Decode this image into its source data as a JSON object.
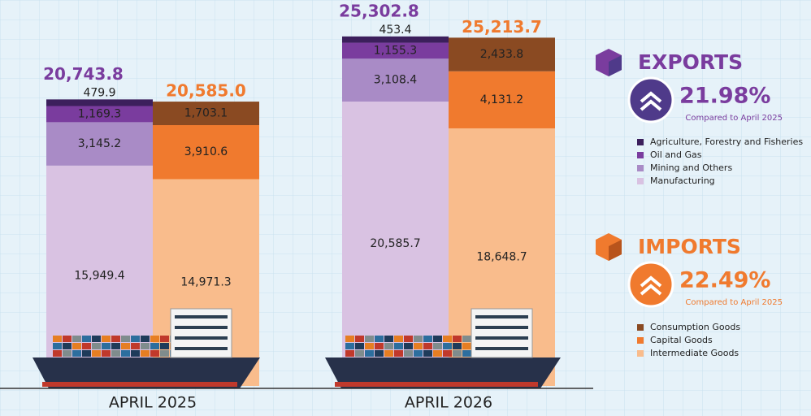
{
  "chart_data": {
    "type": "stacked-bar-pair",
    "categories": [
      "APRIL 2025",
      "APRIL 2026"
    ],
    "groups": [
      {
        "name": "EXPORTS",
        "growth": "21.98%",
        "note": "Compared to April 2025",
        "color": "#7a3c9e",
        "circle_color": "#4f3a8a",
        "totals": [
          "20,743.8",
          "25,302.8"
        ],
        "series": [
          {
            "name": "Agriculture, Forestry and Fisheries",
            "color": "#3c1f5c",
            "values": [
              479.9,
              453.4
            ],
            "value_labels": [
              "479.9",
              "453.4"
            ]
          },
          {
            "name": "Oil and Gas",
            "color": "#7a3c9e",
            "values": [
              1169.3,
              1155.3
            ],
            "value_labels": [
              "1,169.3",
              "1,155.3"
            ]
          },
          {
            "name": "Mining and Others",
            "color": "#a98bc6",
            "values": [
              3145.2,
              3108.4
            ],
            "value_labels": [
              "3,145.2",
              "3,108.4"
            ]
          },
          {
            "name": "Manufacturing",
            "color": "#d9c2e2",
            "values": [
              15949.4,
              20585.7
            ],
            "value_labels": [
              "15,949.4",
              "20,585.7"
            ]
          }
        ]
      },
      {
        "name": "IMPORTS",
        "growth": "22.49%",
        "note": "Compared to April 2025",
        "color": "#f07a2e",
        "circle_color": "#f07a2e",
        "totals": [
          "20,585.0",
          "25,213.7"
        ],
        "series": [
          {
            "name": "Consumption Goods",
            "color": "#8a4a22",
            "values": [
              1703.1,
              2433.8
            ],
            "value_labels": [
              "1,703.1",
              "2,433.8"
            ]
          },
          {
            "name": "Capital Goods",
            "color": "#f07a2e",
            "values": [
              3910.6,
              4131.2
            ],
            "value_labels": [
              "3,910.6",
              "4,131.2"
            ]
          },
          {
            "name": "Intermediate Goods",
            "color": "#f9bc8c",
            "values": [
              14971.3,
              18648.7
            ],
            "value_labels": [
              "14,971.3",
              "18,648.7"
            ]
          }
        ]
      }
    ]
  }
}
